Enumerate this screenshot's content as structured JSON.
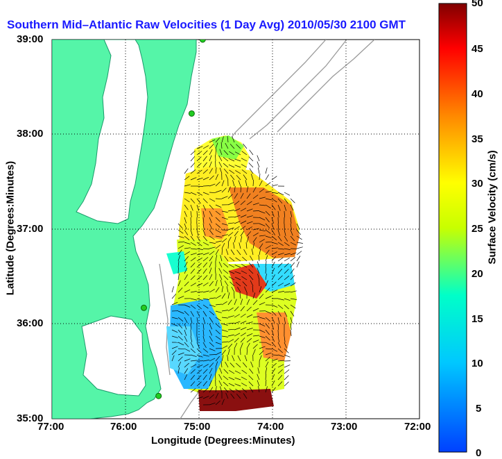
{
  "title": "Southern Mid–Atlantic Raw Velocities (1 Day Avg) 2010/05/30 2100 GMT",
  "axes": {
    "xlabel": "Longitude (Degrees:Minutes)",
    "ylabel": "Latitude (Degrees:Minutes)",
    "xticks": [
      "77:00",
      "76:00",
      "75:00",
      "74:00",
      "73:00",
      "72:00"
    ],
    "yticks": [
      "39:00",
      "38:00",
      "37:00",
      "36:00",
      "35:00"
    ]
  },
  "colorbar": {
    "label": "Surface Velocity (cm/s)",
    "ticks": [
      "50",
      "45",
      "40",
      "35",
      "30",
      "25",
      "20",
      "15",
      "10",
      "5",
      "0"
    ],
    "min": 0,
    "max": 50
  },
  "colors": {
    "land": "#55f5a8",
    "water": "#ffffff",
    "isobath": "#9a9a9a",
    "title": "#1a1aff",
    "station": "#22cc22"
  },
  "chart_data": {
    "type": "heatmap",
    "xlim": [
      -77,
      -72
    ],
    "ylim": [
      35,
      39
    ],
    "grid": true,
    "stations": [
      {
        "lon": -74.95,
        "lat": 39.0
      },
      {
        "lon": -75.1,
        "lat": 38.22
      },
      {
        "lon": -75.75,
        "lat": 36.17
      },
      {
        "lon": -75.55,
        "lat": 35.24
      }
    ]
  }
}
